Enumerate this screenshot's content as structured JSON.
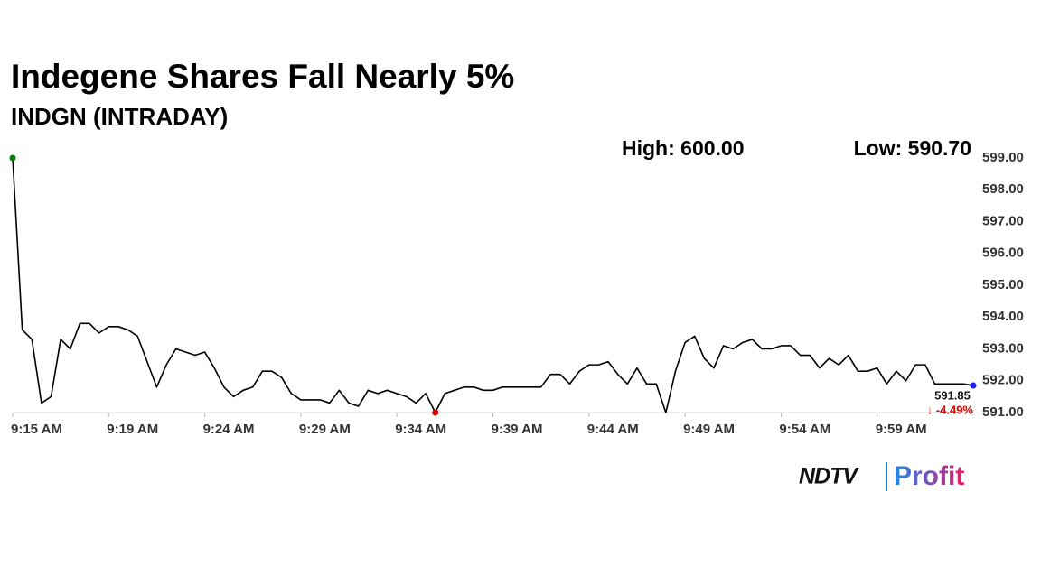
{
  "chart_data": {
    "type": "line",
    "title": "Indegene Shares Fall Nearly 5%",
    "subtitle": "INDGN (INTRADAY)",
    "high_label": "High: 600.00",
    "low_label": "Low: 590.70",
    "last_label": "591.85",
    "change_label": "↓ -4.49%",
    "brand": {
      "name": "NDTV",
      "product": "Profit"
    },
    "categories": [
      "9:15 AM",
      null,
      null,
      null,
      null,
      null,
      null,
      null,
      null,
      null,
      "9:19 AM",
      null,
      null,
      null,
      null,
      null,
      null,
      null,
      null,
      null,
      "9:24 AM",
      null,
      null,
      null,
      null,
      null,
      null,
      null,
      null,
      null,
      "9:29 AM",
      null,
      null,
      null,
      null,
      null,
      null,
      null,
      null,
      null,
      "9:34 AM",
      null,
      null,
      null,
      null,
      null,
      null,
      null,
      null,
      null,
      "9:39 AM",
      null,
      null,
      null,
      null,
      null,
      null,
      null,
      null,
      null,
      "9:44 AM",
      null,
      null,
      null,
      null,
      null,
      null,
      null,
      null,
      null,
      "9:49 AM",
      null,
      null,
      null,
      null,
      null,
      null,
      null,
      null,
      null,
      "9:54 AM",
      null,
      null,
      null,
      null,
      null,
      null,
      null,
      null,
      null,
      "9:59 AM",
      null,
      null,
      null,
      null,
      null,
      null,
      null,
      null,
      null,
      null
    ],
    "values": [
      599.0,
      593.6,
      593.3,
      591.3,
      591.5,
      593.3,
      593.0,
      593.8,
      593.8,
      593.5,
      593.7,
      593.7,
      593.6,
      593.4,
      592.6,
      591.8,
      592.5,
      593.0,
      592.9,
      592.8,
      592.9,
      592.4,
      591.8,
      591.5,
      591.7,
      591.8,
      592.3,
      592.3,
      592.1,
      591.6,
      591.4,
      591.4,
      591.4,
      591.3,
      591.7,
      591.3,
      591.2,
      591.7,
      591.6,
      591.7,
      591.6,
      591.5,
      591.3,
      591.6,
      591.0,
      591.6,
      591.7,
      591.8,
      591.8,
      591.7,
      591.7,
      591.8,
      591.8,
      591.8,
      591.8,
      591.8,
      592.2,
      592.2,
      591.9,
      592.3,
      592.5,
      592.5,
      592.6,
      592.2,
      591.9,
      592.4,
      591.9,
      591.9,
      591.0,
      592.3,
      593.2,
      593.4,
      592.7,
      592.4,
      593.1,
      593.0,
      593.2,
      593.3,
      593.0,
      593.0,
      593.1,
      593.1,
      592.8,
      592.8,
      592.4,
      592.7,
      592.5,
      592.8,
      592.3,
      592.3,
      592.4,
      591.9,
      592.3,
      592.0,
      592.5,
      592.5,
      591.9,
      591.9,
      591.9,
      591.9,
      591.85
    ],
    "color": "#000000",
    "start_color": "#008000",
    "low_color": "#e00000",
    "end_color": "#1a1aff",
    "change_color": "#e00000",
    "ylim": [
      591,
      599
    ],
    "yticks": [
      {
        "value": 591,
        "label": "591.00"
      },
      {
        "value": 592,
        "label": "592.00"
      },
      {
        "value": 593,
        "label": "593.00"
      },
      {
        "value": 594,
        "label": "594.00"
      },
      {
        "value": 595,
        "label": "595.00"
      },
      {
        "value": 596,
        "label": "596.00"
      },
      {
        "value": 597,
        "label": "597.00"
      },
      {
        "value": 598,
        "label": "598.00"
      },
      {
        "value": 599,
        "label": "599.00"
      }
    ],
    "grid": false
  }
}
